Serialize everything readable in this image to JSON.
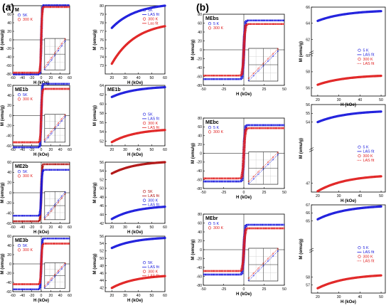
{
  "figure": {
    "panel_a_label": "(a)",
    "panel_b_label": "(b)",
    "colors": {
      "blue": "#1a1adc",
      "red": "#e02020",
      "darkred": "#b01010",
      "axis": "#000000",
      "inset_line": "#3c3cff"
    }
  },
  "chart_data": [
    {
      "id": "a-M-loop",
      "type": "line",
      "title": "M",
      "xlabel": "H (kOe)",
      "ylabel": "M (emu/g)",
      "xlim": [
        -60,
        60
      ],
      "ylim": [
        -80,
        80
      ],
      "xticks": [
        -60,
        -40,
        -20,
        0,
        20,
        40,
        60
      ],
      "yticks": [
        -80,
        -60,
        -40,
        -20,
        0,
        20,
        40,
        60,
        80
      ],
      "legend": {
        "position": "top-left",
        "entries": [
          {
            "label": "5K",
            "color": "blue",
            "marker": "circle"
          },
          {
            "label": "300 K",
            "color": "red",
            "marker": "circle"
          }
        ]
      },
      "series": [
        {
          "name": "5K",
          "color": "blue",
          "ms": 81,
          "scale": 1.4
        },
        {
          "name": "300 K",
          "color": "red",
          "ms": 77,
          "scale": 1.6
        }
      ],
      "inset": true
    },
    {
      "id": "a-M-fit",
      "type": "line",
      "title": "",
      "xlabel": "H (kOe)",
      "ylabel": "M (emu/g)",
      "xlim": [
        15,
        60
      ],
      "ylim": [
        72,
        80
      ],
      "xticks": [
        20,
        30,
        40,
        50,
        60
      ],
      "yticks": [
        73,
        74,
        75,
        76,
        77,
        78,
        79,
        80
      ],
      "legend": {
        "position": "top-right",
        "entries": [
          {
            "label": "5K",
            "color": "blue",
            "marker": "circle"
          },
          {
            "label": "LAS fit",
            "color": "blue",
            "marker": "line"
          },
          {
            "label": "300 K",
            "color": "red",
            "marker": "circle"
          },
          {
            "label": "Las fit",
            "color": "red",
            "marker": "line"
          }
        ]
      },
      "series": [
        {
          "name": "5K",
          "color": "blue",
          "x": [
            20,
            60
          ],
          "y": [
            77.4,
            80.0
          ]
        },
        {
          "name": "300 K",
          "color": "red",
          "x": [
            20,
            60
          ],
          "y": [
            73.2,
            77.6
          ]
        }
      ]
    },
    {
      "id": "a-ME1b-loop",
      "type": "line",
      "title": "ME1b",
      "xlabel": "H (kOe)",
      "ylabel": "M (emu/g)",
      "xlim": [
        -60,
        60
      ],
      "ylim": [
        -60,
        60
      ],
      "xticks": [
        -60,
        -40,
        -20,
        0,
        20,
        40,
        60
      ],
      "yticks": [
        -60,
        -40,
        -20,
        0,
        20,
        40,
        60
      ],
      "legend": {
        "position": "top-left",
        "entries": [
          {
            "label": "5K",
            "color": "blue",
            "marker": "circle"
          },
          {
            "label": "300 K",
            "color": "red",
            "marker": "circle"
          }
        ]
      },
      "series": [
        {
          "name": "5K",
          "color": "blue",
          "ms": 63,
          "scale": 1.4
        },
        {
          "name": "300 K",
          "color": "red",
          "ms": 53,
          "scale": 1.6
        }
      ],
      "inset": true
    },
    {
      "id": "a-ME1b-fit",
      "type": "line",
      "title": "ME1b",
      "xlabel": "H (kOe)",
      "ylabel": "M (emu/g)",
      "xlim": [
        15,
        60
      ],
      "ylim": [
        51,
        64
      ],
      "xticks": [
        20,
        30,
        40,
        50,
        60
      ],
      "yticks": [
        52,
        54,
        56,
        58,
        60,
        62,
        64
      ],
      "legend": {
        "position": "right",
        "entries": [
          {
            "label": "5K",
            "color": "blue",
            "marker": "circle"
          },
          {
            "label": "LAS fit",
            "color": "blue",
            "marker": "line"
          },
          {
            "label": "300 K",
            "color": "red",
            "marker": "circle"
          },
          {
            "label": "LAS fit",
            "color": "red",
            "marker": "line"
          }
        ]
      },
      "series": [
        {
          "name": "5K",
          "color": "blue",
          "x": [
            20,
            60
          ],
          "y": [
            61.5,
            63.6
          ]
        },
        {
          "name": "300 K",
          "color": "red",
          "x": [
            20,
            60
          ],
          "y": [
            51.8,
            54.4
          ]
        }
      ]
    },
    {
      "id": "a-ME2b-loop",
      "type": "line",
      "title": "ME2b",
      "xlabel": "H (kOe)",
      "ylabel": "M (emu/g)",
      "xlim": [
        -60,
        60
      ],
      "ylim": [
        -60,
        60
      ],
      "xticks": [
        -60,
        -40,
        -20,
        0,
        20,
        40,
        60
      ],
      "yticks": [
        -60,
        -40,
        -20,
        0,
        20,
        40,
        60
      ],
      "legend": {
        "position": "top-left",
        "entries": [
          {
            "label": "5K",
            "color": "blue",
            "marker": "circle"
          },
          {
            "label": "300 K",
            "color": "red",
            "marker": "circle"
          }
        ]
      },
      "series": [
        {
          "name": "5K",
          "color": "darkred",
          "ms": 56,
          "scale": 1.4
        },
        {
          "name": "300 K",
          "color": "blue",
          "ms": 45,
          "scale": 1.6
        }
      ],
      "inset": true
    },
    {
      "id": "a-ME2b-fit",
      "type": "line",
      "title": "",
      "xlabel": "H (kOe)",
      "ylabel": "M (emu/g)",
      "xlim": [
        15,
        60
      ],
      "ylim": [
        42,
        56
      ],
      "xticks": [
        20,
        30,
        40,
        50,
        60
      ],
      "yticks": [
        42,
        44,
        46,
        48,
        50,
        52,
        54,
        56
      ],
      "legend": {
        "position": "right",
        "entries": [
          {
            "label": "5K",
            "color": "darkred",
            "marker": "circle"
          },
          {
            "label": "LAS fit",
            "color": "darkred",
            "marker": "line"
          },
          {
            "label": "300 K",
            "color": "blue",
            "marker": "circle"
          },
          {
            "label": "LAS fit",
            "color": "blue",
            "marker": "line"
          }
        ]
      },
      "series": [
        {
          "name": "5K",
          "color": "darkred",
          "x": [
            20,
            60
          ],
          "y": [
            53.4,
            56.0
          ]
        },
        {
          "name": "300 K",
          "color": "blue",
          "x": [
            20,
            60
          ],
          "y": [
            43.0,
            45.8
          ]
        }
      ]
    },
    {
      "id": "a-ME3b-loop",
      "type": "line",
      "title": "ME3b",
      "xlabel": "H (kOe)",
      "ylabel": "M (emu/g)",
      "xlim": [
        -60,
        60
      ],
      "ylim": [
        -60,
        60
      ],
      "xticks": [
        -60,
        -40,
        -20,
        0,
        20,
        40,
        60
      ],
      "yticks": [
        -60,
        -40,
        -20,
        0,
        20,
        40,
        60
      ],
      "legend": {
        "position": "top-left",
        "entries": [
          {
            "label": "5K",
            "color": "blue",
            "marker": "circle"
          },
          {
            "label": "300 K",
            "color": "red",
            "marker": "circle"
          }
        ]
      },
      "series": [
        {
          "name": "5K",
          "color": "blue",
          "ms": 55,
          "scale": 1.4
        },
        {
          "name": "300 K",
          "color": "red",
          "ms": 44,
          "scale": 1.6
        }
      ],
      "inset": true
    },
    {
      "id": "a-ME3b-fit",
      "type": "line",
      "title": "",
      "xlabel": "H (kOe)",
      "ylabel": "M (emu/g)",
      "xlim": [
        15,
        60
      ],
      "ylim": [
        41,
        56
      ],
      "xticks": [
        20,
        30,
        40,
        50,
        60
      ],
      "yticks": [
        42,
        44,
        46,
        48,
        50,
        52,
        54,
        56
      ],
      "legend": {
        "position": "right",
        "entries": [
          {
            "label": "5K",
            "color": "blue",
            "marker": "circle"
          },
          {
            "label": "LAS fit",
            "color": "blue",
            "marker": "line"
          },
          {
            "label": "300 K",
            "color": "red",
            "marker": "circle"
          },
          {
            "label": "LAS fit",
            "color": "red",
            "marker": "line"
          }
        ]
      },
      "series": [
        {
          "name": "5K",
          "color": "blue",
          "x": [
            20,
            60
          ],
          "y": [
            52.8,
            55.5
          ]
        },
        {
          "name": "300 K",
          "color": "red",
          "x": [
            20,
            60
          ],
          "y": [
            42.0,
            45.2
          ]
        }
      ]
    },
    {
      "id": "b-MEbs-loop",
      "type": "line",
      "title": "MEbs",
      "xlabel": "H (kOe)",
      "ylabel": "M (emu/g)",
      "xlim": [
        -50,
        50
      ],
      "ylim": [
        -80,
        80
      ],
      "xticks": [
        -50,
        -25,
        0,
        25,
        50
      ],
      "yticks": [
        -80,
        -60,
        -40,
        -20,
        0,
        20,
        40,
        60,
        80
      ],
      "legend": {
        "position": "top-left",
        "entries": [
          {
            "label": "5 K",
            "color": "blue",
            "marker": "circle"
          },
          {
            "label": "300 K",
            "color": "red",
            "marker": "circle"
          }
        ]
      },
      "series": [
        {
          "name": "5 K",
          "color": "blue",
          "ms": 66,
          "scale": 1.2
        },
        {
          "name": "300 K",
          "color": "red",
          "ms": 58,
          "scale": 1.4
        }
      ],
      "inset": true
    },
    {
      "id": "b-MEbs-fit",
      "type": "line",
      "title": "",
      "xlabel": "H (kOe)",
      "ylabel": "M (emu/g)",
      "xlim": [
        17,
        52
      ],
      "ylim": [
        55,
        66
      ],
      "xticks": [
        20,
        30,
        40,
        50
      ],
      "yticks": [
        56,
        58,
        60,
        62,
        64,
        66
      ],
      "axis_break": true,
      "legend": {
        "position": "right",
        "entries": [
          {
            "label": "5 K",
            "color": "blue",
            "marker": "circle"
          },
          {
            "label": "LAS fit",
            "color": "blue",
            "marker": "line"
          },
          {
            "label": "300 K",
            "color": "red",
            "marker": "circle"
          },
          {
            "label": "LAS fit",
            "color": "red",
            "marker": "dotted"
          }
        ]
      },
      "series": [
        {
          "name": "5 K",
          "color": "blue",
          "x": [
            20,
            50
          ],
          "y": [
            64.3,
            65.5
          ]
        },
        {
          "name": "300 K",
          "color": "red",
          "x": [
            20,
            50
          ],
          "y": [
            56.4,
            57.5
          ]
        }
      ]
    },
    {
      "id": "b-MEbc-loop",
      "type": "line",
      "title": "MEbc",
      "xlabel": "H (kOe)",
      "ylabel": "M (emu/g)",
      "xlim": [
        -50,
        50
      ],
      "ylim": [
        -80,
        80
      ],
      "xticks": [
        -50,
        -25,
        0,
        25,
        50
      ],
      "yticks": [
        -80,
        -60,
        -40,
        -20,
        0,
        20,
        40,
        60,
        80
      ],
      "legend": {
        "position": "top-left",
        "entries": [
          {
            "label": "5 K",
            "color": "blue",
            "marker": "circle"
          },
          {
            "label": "300 K",
            "color": "red",
            "marker": "circle"
          }
        ]
      },
      "series": [
        {
          "name": "5 K",
          "color": "blue",
          "ms": 64,
          "scale": 1.2
        },
        {
          "name": "300 K",
          "color": "red",
          "ms": 57,
          "scale": 1.4
        }
      ],
      "inset": true
    },
    {
      "id": "b-MEbc-fit",
      "type": "line",
      "title": "",
      "xlabel": "H (kOe)",
      "ylabel": "M (emu/g)",
      "xlim": [
        17,
        52
      ],
      "ylim": [
        46,
        56
      ],
      "xticks": [
        20,
        30,
        40,
        50
      ],
      "yticks": [
        47,
        54,
        55,
        56
      ],
      "axis_break": true,
      "legend": {
        "position": "right",
        "entries": [
          {
            "label": "5 K",
            "color": "blue",
            "marker": "circle"
          },
          {
            "label": "LAS fit",
            "color": "blue",
            "marker": "line"
          },
          {
            "label": "300 K",
            "color": "red",
            "marker": "circle"
          },
          {
            "label": "LAS fit",
            "color": "red",
            "marker": "dotted"
          }
        ]
      },
      "series": [
        {
          "name": "5 K",
          "color": "blue",
          "x": [
            20,
            50
          ],
          "y": [
            54.0,
            55.2
          ]
        },
        {
          "name": "300 K",
          "color": "red",
          "x": [
            20,
            50
          ],
          "y": [
            46.1,
            47.8
          ]
        }
      ]
    },
    {
      "id": "b-MEbr-loop",
      "type": "line",
      "title": "MEbr",
      "xlabel": "H (kOe)",
      "ylabel": "M (emu/g)",
      "xlim": [
        -50,
        50
      ],
      "ylim": [
        -80,
        80
      ],
      "xticks": [
        -50,
        -25,
        0,
        25,
        50
      ],
      "yticks": [
        -80,
        -60,
        -40,
        -20,
        0,
        20,
        40,
        60,
        80
      ],
      "legend": {
        "position": "top-left",
        "entries": [
          {
            "label": "5 K",
            "color": "blue",
            "marker": "circle"
          },
          {
            "label": "300 K",
            "color": "red",
            "marker": "circle"
          }
        ]
      },
      "series": [
        {
          "name": "5 K",
          "color": "blue",
          "ms": 56,
          "scale": 1.2
        },
        {
          "name": "300 K",
          "color": "red",
          "ms": 48,
          "scale": 1.4
        }
      ],
      "inset": true
    },
    {
      "id": "b-MEbr-fit",
      "type": "line",
      "title": "",
      "xlabel": "H (kOe)",
      "ylabel": "M (emu/g)",
      "xlim": [
        17,
        52
      ],
      "ylim": [
        56,
        67
      ],
      "xticks": [
        20,
        30,
        40,
        50
      ],
      "yticks": [
        57,
        58,
        65,
        66,
        67
      ],
      "axis_break": true,
      "legend": {
        "position": "right",
        "entries": [
          {
            "label": "5 K",
            "color": "blue",
            "marker": "circle"
          },
          {
            "label": "LAS fit",
            "color": "blue",
            "marker": "line"
          },
          {
            "label": "300 K",
            "color": "red",
            "marker": "circle"
          },
          {
            "label": "LAS fit",
            "color": "red",
            "marker": "dotted"
          }
        ]
      },
      "series": [
        {
          "name": "5 K",
          "color": "blue",
          "x": [
            20,
            50
          ],
          "y": [
            65.2,
            66.8
          ]
        },
        {
          "name": "300 K",
          "color": "red",
          "x": [
            20,
            50
          ],
          "y": [
            56.6,
            58.2
          ]
        }
      ]
    }
  ]
}
